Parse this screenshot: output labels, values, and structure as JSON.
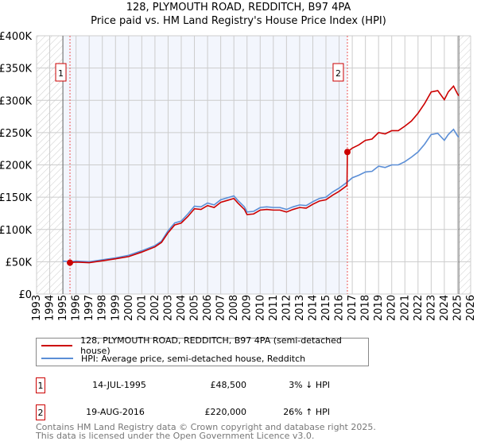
{
  "chart_data": {
    "type": "line",
    "title": "128, PLYMOUTH ROAD, REDDITCH, B97 4PA",
    "subtitle": "Price paid vs. HM Land Registry's House Price Index (HPI)",
    "xlim": [
      1993,
      2026
    ],
    "ylim": [
      0,
      400000
    ],
    "y_ticks": [
      0,
      50000,
      100000,
      150000,
      200000,
      250000,
      300000,
      350000,
      400000
    ],
    "y_tick_labels": [
      "£0",
      "£50K",
      "£100K",
      "£150K",
      "£200K",
      "£250K",
      "£300K",
      "£350K",
      "£400K"
    ],
    "x_tick_labels": [
      "1993",
      "1994",
      "1995",
      "1996",
      "1997",
      "1998",
      "1999",
      "2000",
      "2001",
      "2002",
      "2003",
      "2004",
      "2005",
      "2006",
      "2007",
      "2008",
      "2009",
      "2010",
      "2011",
      "2012",
      "2013",
      "2014",
      "2015",
      "2016",
      "2017",
      "2018",
      "2019",
      "2020",
      "2021",
      "2022",
      "2023",
      "2024",
      "2025",
      "2026"
    ],
    "grid": true,
    "legend_position": "bottom",
    "series": [
      {
        "name": "128, PLYMOUTH ROAD, REDDITCH, B97 4PA (semi-detached house)",
        "color": "#cc0000",
        "x": [
          1995.54,
          1996,
          1997,
          1998,
          1999,
          2000,
          2001,
          2002,
          2002.5,
          2003,
          2003.5,
          2004,
          2004.5,
          2005,
          2005.5,
          2006,
          2006.5,
          2007,
          2007.5,
          2008,
          2008.3,
          2008.8,
          2009,
          2009.5,
          2010,
          2010.5,
          2011,
          2011.5,
          2012,
          2012.5,
          2013,
          2013.5,
          2014,
          2014.5,
          2015,
          2015.5,
          2016,
          2016.6,
          2016.63,
          2017,
          2017.5,
          2018,
          2018.5,
          2019,
          2019.5,
          2020,
          2020.5,
          2021,
          2021.5,
          2022,
          2022.5,
          2023,
          2023.5,
          2024,
          2024.3,
          2024.7,
          2025,
          2025.1
        ],
        "y": [
          48500,
          49500,
          48500,
          51500,
          54500,
          58000,
          65000,
          73000,
          80000,
          95000,
          107000,
          110000,
          120000,
          132000,
          131000,
          137000,
          134000,
          142000,
          145000,
          148000,
          141000,
          131000,
          123000,
          124000,
          130000,
          131000,
          130000,
          130000,
          127000,
          131000,
          134000,
          133000,
          139000,
          144000,
          146000,
          153000,
          159000,
          168000,
          220000,
          226000,
          231000,
          238000,
          240000,
          250000,
          248000,
          253000,
          253000,
          260000,
          268000,
          280000,
          295000,
          313000,
          315000,
          301000,
          313000,
          322000,
          310000,
          307000
        ]
      },
      {
        "name": "HPI: Average price, semi-detached house, Redditch",
        "color": "#5b8ed6",
        "x": [
          1995,
          1995.5,
          1996,
          1997,
          1998,
          1999,
          2000,
          2001,
          2002,
          2002.5,
          2003,
          2003.5,
          2004,
          2004.5,
          2005,
          2005.5,
          2006,
          2006.5,
          2007,
          2007.5,
          2008,
          2008.3,
          2008.8,
          2009,
          2009.5,
          2010,
          2010.5,
          2011,
          2011.5,
          2012,
          2012.5,
          2013,
          2013.5,
          2014,
          2014.5,
          2015,
          2015.5,
          2016,
          2016.6,
          2017,
          2017.5,
          2018,
          2018.5,
          2019,
          2019.5,
          2020,
          2020.5,
          2021,
          2021.5,
          2022,
          2022.5,
          2023,
          2023.5,
          2024,
          2024.3,
          2024.7,
          2025,
          2025.1
        ],
        "y": [
          51000,
          50000,
          51000,
          50000,
          53000,
          56000,
          60000,
          67000,
          75000,
          82000,
          98000,
          110000,
          113000,
          124000,
          136000,
          135000,
          141000,
          138000,
          146000,
          149000,
          152000,
          145000,
          135000,
          127000,
          128000,
          134000,
          135000,
          134000,
          134000,
          131000,
          135000,
          138000,
          137000,
          143000,
          148000,
          150000,
          158000,
          164000,
          173000,
          180000,
          184000,
          189000,
          190000,
          198000,
          196000,
          200000,
          200000,
          205000,
          212000,
          220000,
          232000,
          247000,
          249000,
          238000,
          247000,
          255000,
          245000,
          243000
        ]
      }
    ],
    "sales": [
      {
        "id": "1",
        "x": 1995.54,
        "y": 48500,
        "date": "14-JUL-1995",
        "price": "£48,500",
        "hpi": "3% ↓ HPI"
      },
      {
        "id": "2",
        "x": 2016.63,
        "y": 220000,
        "date": "19-AUG-2016",
        "price": "£220,000",
        "hpi": "26% ↑ HPI"
      }
    ],
    "shaded_range": [
      1995,
      2016.63
    ],
    "hatched_ranges": [
      [
        1993,
        1995
      ],
      [
        2025.1,
        2026
      ]
    ]
  },
  "footer": {
    "line1": "Contains HM Land Registry data © Crown copyright and database right 2025.",
    "line2": "This data is licensed under the Open Government Licence v3.0."
  }
}
